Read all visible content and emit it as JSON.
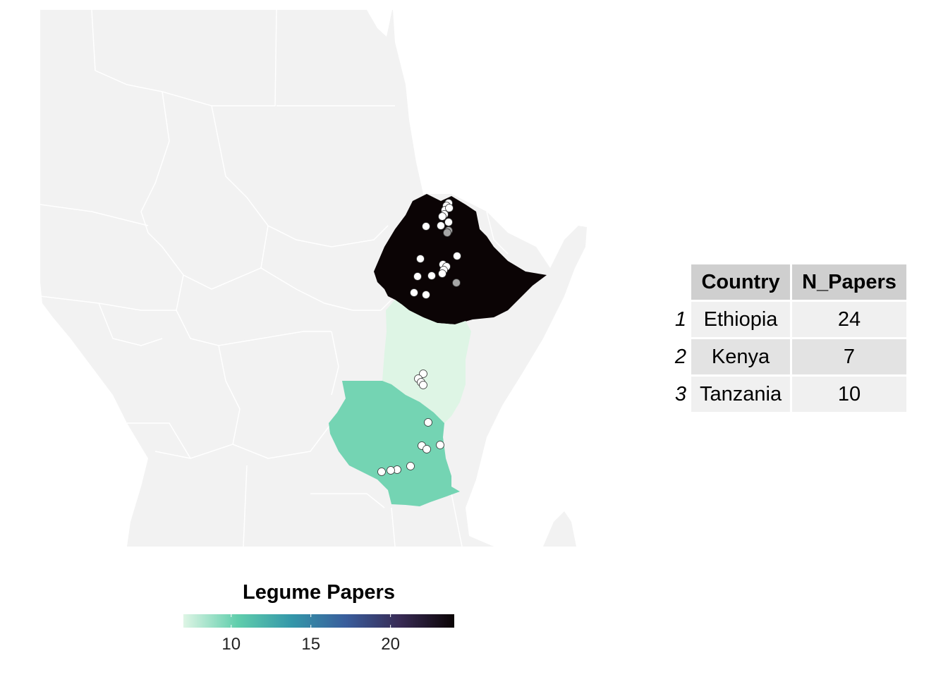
{
  "legend": {
    "title": "Legume Papers",
    "ticks": [
      {
        "value": 10,
        "label": "10"
      },
      {
        "value": 15,
        "label": "15"
      },
      {
        "value": 20,
        "label": "20"
      }
    ],
    "min": 7,
    "max": 24,
    "colors": [
      "#def5e5",
      "#60ceac",
      "#3497a9",
      "#395d9c",
      "#382a54",
      "#0b0405"
    ]
  },
  "map": {
    "background_land_color": "#f2f2f2",
    "border_color": "#ffffff",
    "countries": [
      {
        "name": "Ethiopia",
        "papers": 24,
        "fill": "#0b0405"
      },
      {
        "name": "Kenya",
        "papers": 7,
        "fill": "#def5e5"
      },
      {
        "name": "Tanzania",
        "papers": 10,
        "fill": "#74d4b3"
      }
    ],
    "point_color": "#ffffff",
    "point_highlight_color": "#a6a6a6"
  },
  "table": {
    "headers": [
      "Country",
      "N_Papers"
    ],
    "rows": [
      {
        "num": "1",
        "country": "Ethiopia",
        "n": "24"
      },
      {
        "num": "2",
        "country": "Kenya",
        "n": "7"
      },
      {
        "num": "3",
        "country": "Tanzania",
        "n": "10"
      }
    ]
  }
}
